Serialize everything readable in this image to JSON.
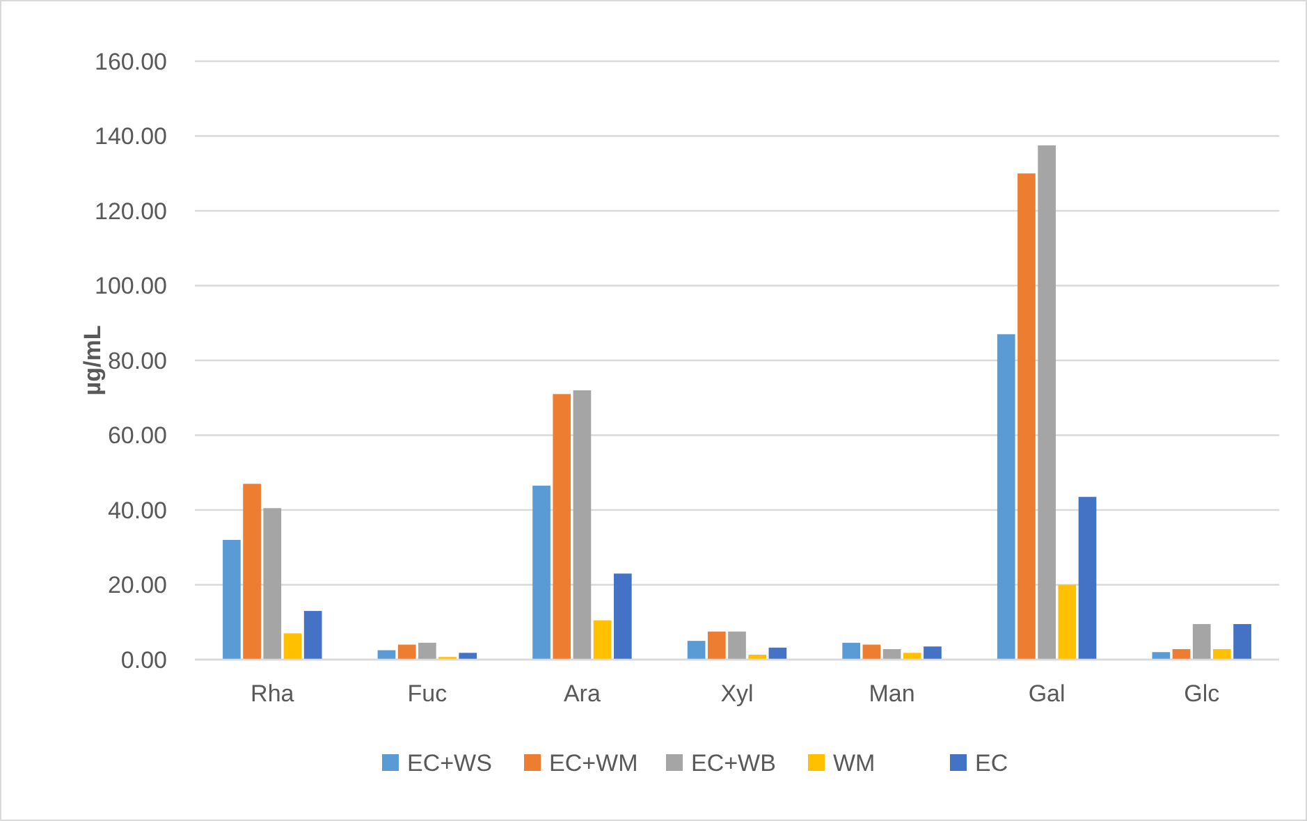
{
  "chart_data": {
    "type": "bar",
    "ylabel": "µg/mL",
    "categories": [
      "Rha",
      "Fuc",
      "Ara",
      "Xyl",
      "Man",
      "Gal",
      "Glc"
    ],
    "series": [
      {
        "name": "EC+WS",
        "color": "#5b9bd5",
        "values": [
          32,
          2.5,
          46.5,
          5,
          4.5,
          87,
          2
        ]
      },
      {
        "name": "EC+WM",
        "color": "#ed7d31",
        "values": [
          47,
          4,
          71,
          7.5,
          4,
          130,
          2.8
        ]
      },
      {
        "name": "EC+WB",
        "color": "#a5a5a5",
        "values": [
          40.5,
          4.5,
          72,
          7.5,
          2.8,
          137.5,
          9.5
        ]
      },
      {
        "name": "WM",
        "color": "#ffc000",
        "values": [
          7,
          0.7,
          10.5,
          1.3,
          1.8,
          20,
          2.8
        ]
      },
      {
        "name": "EC",
        "color": "#4472c4",
        "values": [
          13,
          1.8,
          23,
          3.2,
          3.5,
          43.5,
          9.5
        ]
      }
    ],
    "ylim": [
      0,
      160
    ],
    "yticks": [
      {
        "value": 0,
        "label": "0.00"
      },
      {
        "value": 20,
        "label": "20.00"
      },
      {
        "value": 40,
        "label": "40.00"
      },
      {
        "value": 60,
        "label": "60.00"
      },
      {
        "value": 80,
        "label": "80.00"
      },
      {
        "value": 100,
        "label": "100.00"
      },
      {
        "value": 120,
        "label": "120.00"
      },
      {
        "value": 140,
        "label": "140.00"
      },
      {
        "value": 160,
        "label": "160.00"
      }
    ],
    "grid": "y",
    "legend": "bottom"
  }
}
